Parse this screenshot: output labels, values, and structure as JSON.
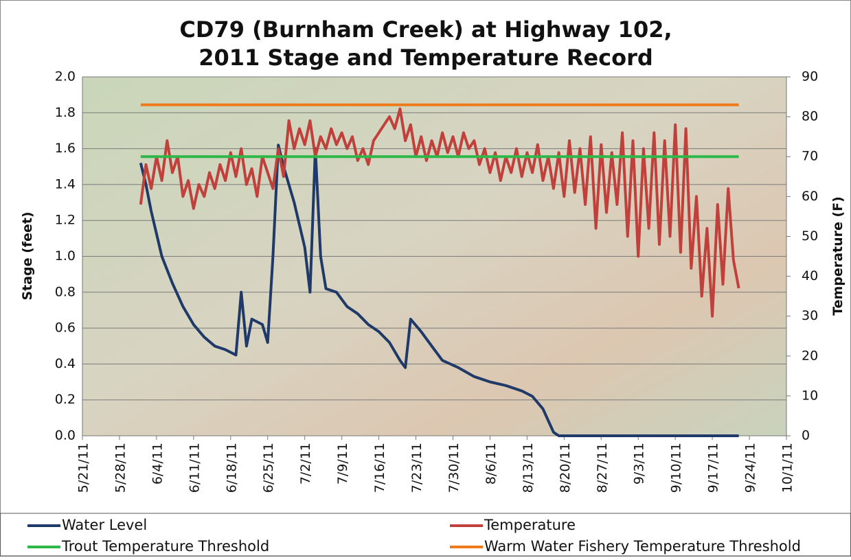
{
  "chart_data": {
    "type": "line",
    "title": "CD79 (Burnham Creek) at Highway 102,",
    "subtitle": "2011 Stage and Temperature Record",
    "y_label": "Stage (feet)",
    "y2_label": "Temperature (F)",
    "xlim": [
      "5/21/11",
      "10/1/11"
    ],
    "xticks": [
      "5/21/11",
      "5/28/11",
      "6/4/11",
      "6/11/11",
      "6/18/11",
      "6/25/11",
      "7/2/11",
      "7/9/11",
      "7/16/11",
      "7/23/11",
      "7/30/11",
      "8/6/11",
      "8/13/11",
      "8/20/11",
      "8/27/11",
      "9/3/11",
      "9/10/11",
      "9/17/11",
      "9/24/11",
      "10/1/11"
    ],
    "ylim": [
      0,
      2
    ],
    "yticks": [
      {
        "value": 0,
        "label": "0.0"
      },
      0.2,
      0.4,
      0.6,
      0.8,
      {
        "value": 1,
        "label": "1.0"
      },
      1.2,
      1.4,
      1.6,
      1.8,
      {
        "value": 2,
        "label": "2.0"
      }
    ],
    "y2lim": [
      0,
      90
    ],
    "y2ticks": [
      0,
      10,
      20,
      30,
      40,
      50,
      60,
      70,
      80,
      90
    ],
    "grid": true,
    "legend": "bottom",
    "series": [
      {
        "name": "Water Level",
        "color": "#1f3a68",
        "x": [
          "6/1/11",
          "6/2/11",
          "6/3/11",
          "6/5/11",
          "6/7/11",
          "6/9/11",
          "6/11/11",
          "6/13/11",
          "6/15/11",
          "6/17/11",
          "6/19/11",
          "6/20/11",
          "6/21/11",
          "6/22/11",
          "6/24/11",
          "6/25/11",
          "6/26/11",
          "6/27/11",
          "6/28/11",
          "6/30/11",
          "7/2/11",
          "7/3/11",
          "7/4/11",
          "7/5/11",
          "7/6/11",
          "7/8/11",
          "7/10/11",
          "7/12/11",
          "7/14/11",
          "7/16/11",
          "7/18/11",
          "7/20/11",
          "7/21/11",
          "7/22/11",
          "7/24/11",
          "7/26/11",
          "7/28/11",
          "7/31/11",
          "8/3/11",
          "8/6/11",
          "8/9/11",
          "8/12/11",
          "8/14/11",
          "8/16/11",
          "8/18/11",
          "8/19/11",
          "9/22/11"
        ],
        "values": [
          1.52,
          1.4,
          1.25,
          1.0,
          0.85,
          0.72,
          0.62,
          0.55,
          0.5,
          0.48,
          0.45,
          0.8,
          0.5,
          0.65,
          0.62,
          0.52,
          1.0,
          1.62,
          1.5,
          1.3,
          1.05,
          0.8,
          1.6,
          1.0,
          0.82,
          0.8,
          0.72,
          0.68,
          0.62,
          0.58,
          0.52,
          0.42,
          0.38,
          0.65,
          0.58,
          0.5,
          0.42,
          0.38,
          0.33,
          0.3,
          0.28,
          0.25,
          0.22,
          0.15,
          0.02,
          0,
          0
        ]
      },
      {
        "name": "Temperature",
        "color": "#c0403c",
        "axis": "y2",
        "x": [
          "6/1/11",
          "6/2/11",
          "6/3/11",
          "6/4/11",
          "6/5/11",
          "6/6/11",
          "6/7/11",
          "6/8/11",
          "6/9/11",
          "6/10/11",
          "6/11/11",
          "6/12/11",
          "6/13/11",
          "6/14/11",
          "6/15/11",
          "6/16/11",
          "6/17/11",
          "6/18/11",
          "6/19/11",
          "6/20/11",
          "6/21/11",
          "6/22/11",
          "6/23/11",
          "6/24/11",
          "6/25/11",
          "6/26/11",
          "6/27/11",
          "6/28/11",
          "6/29/11",
          "6/30/11",
          "7/1/11",
          "7/2/11",
          "7/3/11",
          "7/4/11",
          "7/5/11",
          "7/6/11",
          "7/7/11",
          "7/8/11",
          "7/9/11",
          "7/10/11",
          "7/11/11",
          "7/12/11",
          "7/13/11",
          "7/14/11",
          "7/15/11",
          "7/16/11",
          "7/17/11",
          "7/18/11",
          "7/19/11",
          "7/20/11",
          "7/21/11",
          "7/22/11",
          "7/23/11",
          "7/24/11",
          "7/25/11",
          "7/26/11",
          "7/27/11",
          "7/28/11",
          "7/29/11",
          "7/30/11",
          "7/31/11",
          "8/1/11",
          "8/2/11",
          "8/3/11",
          "8/4/11",
          "8/5/11",
          "8/6/11",
          "8/7/11",
          "8/8/11",
          "8/9/11",
          "8/10/11",
          "8/11/11",
          "8/12/11",
          "8/13/11",
          "8/14/11",
          "8/15/11",
          "8/16/11",
          "8/17/11",
          "8/18/11",
          "8/19/11",
          "8/20/11",
          "8/21/11",
          "8/22/11",
          "8/23/11",
          "8/24/11",
          "8/25/11",
          "8/26/11",
          "8/27/11",
          "8/28/11",
          "8/29/11",
          "8/30/11",
          "8/31/11",
          "9/1/11",
          "9/2/11",
          "9/3/11",
          "9/4/11",
          "9/5/11",
          "9/6/11",
          "9/7/11",
          "9/8/11",
          "9/9/11",
          "9/10/11",
          "9/11/11",
          "9/12/11",
          "9/13/11",
          "9/14/11",
          "9/15/11",
          "9/16/11",
          "9/17/11",
          "9/18/11",
          "9/19/11",
          "9/20/11",
          "9/21/11",
          "9/22/11"
        ],
        "values": [
          58,
          68,
          62,
          70,
          64,
          74,
          66,
          70,
          60,
          64,
          57,
          63,
          60,
          66,
          62,
          68,
          64,
          71,
          65,
          72,
          63,
          67,
          60,
          70,
          66,
          62,
          72,
          65,
          79,
          72,
          77,
          73,
          79,
          70,
          75,
          72,
          77,
          73,
          76,
          72,
          75,
          69,
          72,
          68,
          74,
          76,
          78,
          80,
          77,
          82,
          74,
          78,
          70,
          75,
          69,
          74,
          70,
          76,
          71,
          75,
          70,
          76,
          72,
          74,
          68,
          72,
          66,
          71,
          64,
          70,
          66,
          72,
          65,
          71,
          66,
          73,
          64,
          70,
          62,
          71,
          60,
          74,
          61,
          72,
          58,
          75,
          52,
          73,
          56,
          71,
          58,
          76,
          50,
          74,
          45,
          72,
          52,
          76,
          48,
          74,
          50,
          78,
          46,
          77,
          42,
          60,
          35,
          52,
          30,
          58,
          38,
          62,
          44,
          37
        ]
      },
      {
        "name": "Trout Temperature Threshold",
        "color": "#2eb84a",
        "axis": "y2",
        "x": [
          "6/1/11",
          "9/22/11"
        ],
        "values": [
          70,
          70
        ]
      },
      {
        "name": "Warm Water Fishery Temperature Threshold",
        "color": "#ee7a1c",
        "axis": "y2",
        "x": [
          "6/1/11",
          "9/22/11"
        ],
        "values": [
          83,
          83
        ]
      }
    ]
  }
}
